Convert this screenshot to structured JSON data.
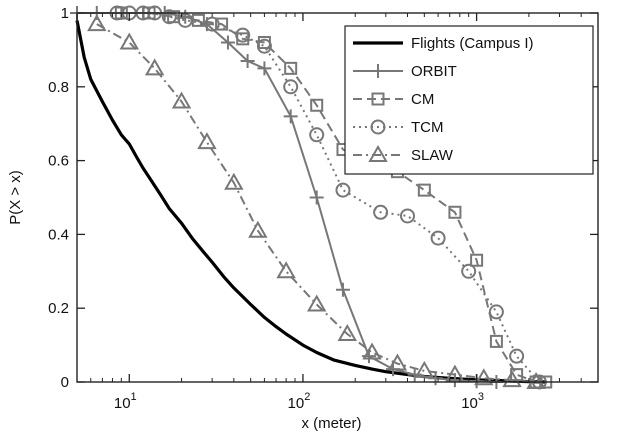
{
  "chart_data": {
    "type": "line",
    "xlabel": "x (meter)",
    "ylabel": "P(X > x)",
    "xscale": "log",
    "xlim": [
      5,
      5000
    ],
    "ylim": [
      0,
      1
    ],
    "x_ticks": [
      10,
      100,
      1000
    ],
    "x_tick_labels": [
      {
        "base": "10",
        "exp": "1"
      },
      {
        "base": "10",
        "exp": "2"
      },
      {
        "base": "10",
        "exp": "3"
      }
    ],
    "y_ticks": [
      0,
      0.2,
      0.4,
      0.6,
      0.8,
      1
    ],
    "y_tick_labels": [
      "0",
      "0.2",
      "0.4",
      "0.6",
      "0.8",
      "1"
    ],
    "grid": false,
    "legend_position": "top-right",
    "series": [
      {
        "name": "Flights (Campus I)",
        "color": "#000000",
        "line_style": "solid",
        "marker": "none",
        "x": [
          5,
          5.5,
          6,
          7,
          8,
          9,
          10,
          11,
          12,
          13,
          15,
          17,
          20,
          23,
          27,
          30,
          35,
          40,
          50,
          60,
          70,
          80,
          100,
          120,
          150,
          200,
          250,
          300,
          400,
          500,
          700,
          1000,
          1500,
          2000,
          2500
        ],
        "y": [
          0.98,
          0.88,
          0.82,
          0.76,
          0.71,
          0.67,
          0.645,
          0.61,
          0.58,
          0.555,
          0.51,
          0.47,
          0.43,
          0.39,
          0.35,
          0.325,
          0.285,
          0.255,
          0.21,
          0.175,
          0.15,
          0.13,
          0.1,
          0.08,
          0.06,
          0.045,
          0.035,
          0.028,
          0.02,
          0.015,
          0.01,
          0.006,
          0.003,
          0.001,
          0
        ]
      },
      {
        "name": "ORBIT",
        "color": "#777777",
        "line_style": "solid",
        "marker": "plus",
        "x": [
          5,
          6.5,
          9,
          12,
          16,
          21,
          28,
          37,
          48,
          60,
          85,
          120,
          170,
          240,
          330,
          440,
          580,
          750,
          1000,
          1300
        ],
        "y": [
          1,
          1,
          1,
          1,
          1,
          0.99,
          0.97,
          0.92,
          0.87,
          0.85,
          0.72,
          0.5,
          0.25,
          0.07,
          0.035,
          0.02,
          0.01,
          0.005,
          0.002,
          0
        ]
      },
      {
        "name": "CM",
        "color": "#777777",
        "line_style": "dashed",
        "marker": "square",
        "x": [
          9,
          13,
          18,
          25,
          34,
          45,
          60,
          85,
          120,
          170,
          250,
          350,
          500,
          750,
          1000,
          1300,
          1700,
          2200,
          2500
        ],
        "y": [
          1,
          1,
          0.99,
          0.98,
          0.97,
          0.93,
          0.92,
          0.85,
          0.75,
          0.63,
          0.59,
          0.57,
          0.52,
          0.46,
          0.33,
          0.11,
          0.02,
          0,
          0
        ]
      },
      {
        "name": "TCM",
        "color": "#777777",
        "line_style": "dotted",
        "marker": "circle",
        "x": [
          8.5,
          10,
          12,
          14,
          17,
          21,
          30,
          45,
          60,
          85,
          120,
          170,
          280,
          400,
          600,
          900,
          1300,
          1700,
          2300
        ],
        "y": [
          1,
          1,
          1,
          1,
          0.99,
          0.98,
          0.97,
          0.94,
          0.91,
          0.8,
          0.67,
          0.52,
          0.46,
          0.45,
          0.39,
          0.3,
          0.19,
          0.07,
          0
        ]
      },
      {
        "name": "SLAW",
        "color": "#777777",
        "line_style": "dash-dot",
        "marker": "triangle",
        "x": [
          6.5,
          10,
          14,
          20,
          28,
          40,
          55,
          80,
          120,
          180,
          250,
          350,
          500,
          750,
          1100,
          1600,
          2200
        ],
        "y": [
          0.97,
          0.92,
          0.85,
          0.76,
          0.65,
          0.54,
          0.41,
          0.3,
          0.21,
          0.13,
          0.08,
          0.05,
          0.03,
          0.02,
          0.01,
          0.005,
          0
        ]
      }
    ]
  }
}
